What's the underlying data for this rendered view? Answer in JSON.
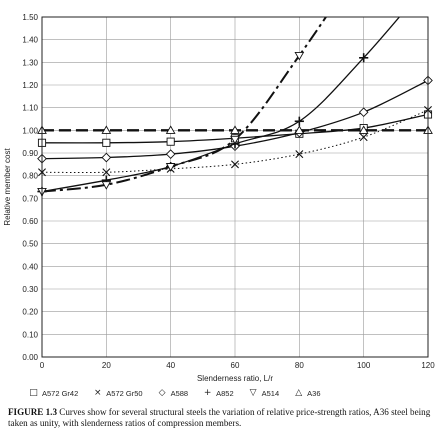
{
  "chart_data": {
    "type": "line",
    "xlabel": "Slenderness ratio, L/r",
    "ylabel": "Relative member cost",
    "xlim": [
      0,
      120
    ],
    "ylim": [
      0,
      1.5
    ],
    "xticks": [
      0,
      20,
      40,
      60,
      80,
      100,
      120
    ],
    "yticks": [
      0.0,
      0.1,
      0.2,
      0.3,
      0.4,
      0.5,
      0.6,
      0.7,
      0.8,
      0.9,
      1.0,
      1.1,
      1.2,
      1.3,
      1.4,
      1.5
    ],
    "grid": true,
    "legend_position": "bottom",
    "series": [
      {
        "name": "A572 Gr42",
        "marker": "square",
        "style": "solid",
        "x": [
          0,
          20,
          40,
          60,
          80,
          100,
          120
        ],
        "y": [
          0.945,
          0.945,
          0.95,
          0.965,
          0.985,
          1.01,
          1.07
        ]
      },
      {
        "name": "A572 Gr50",
        "marker": "x",
        "style": "dotted",
        "x": [
          0,
          20,
          40,
          60,
          80,
          100,
          120
        ],
        "y": [
          0.815,
          0.815,
          0.83,
          0.85,
          0.895,
          0.97,
          1.09
        ]
      },
      {
        "name": "A588",
        "marker": "diamond",
        "style": "solid",
        "x": [
          0,
          20,
          40,
          60,
          80,
          100,
          120
        ],
        "y": [
          0.875,
          0.88,
          0.895,
          0.93,
          0.99,
          1.08,
          1.22
        ]
      },
      {
        "name": "A852",
        "marker": "plus",
        "style": "solid",
        "x": [
          0,
          20,
          40,
          60,
          80,
          100,
          120
        ],
        "y": [
          0.73,
          0.78,
          0.84,
          0.94,
          1.04,
          1.32,
          1.65
        ]
      },
      {
        "name": "A514",
        "marker": "triangle-down",
        "style": "dash-dot",
        "x": [
          0,
          20,
          40,
          60,
          80,
          100
        ],
        "y": [
          0.73,
          0.76,
          0.84,
          0.96,
          1.33,
          1.75
        ]
      },
      {
        "name": "A36",
        "marker": "triangle-up",
        "style": "dashed",
        "x": [
          0,
          20,
          40,
          60,
          80,
          100,
          120
        ],
        "y": [
          1.0,
          1.0,
          1.0,
          1.0,
          1.0,
          1.0,
          1.0
        ]
      }
    ]
  },
  "legend_symbols": [
    "□",
    "×",
    "◇",
    "+",
    "▽",
    "△"
  ],
  "caption": {
    "label": "FIGURE 1.3",
    "text": "Curves show for several structural steels the variation of relative price-strength ratios, A36 steel being taken as unity, with slenderness ratios of compression members."
  }
}
